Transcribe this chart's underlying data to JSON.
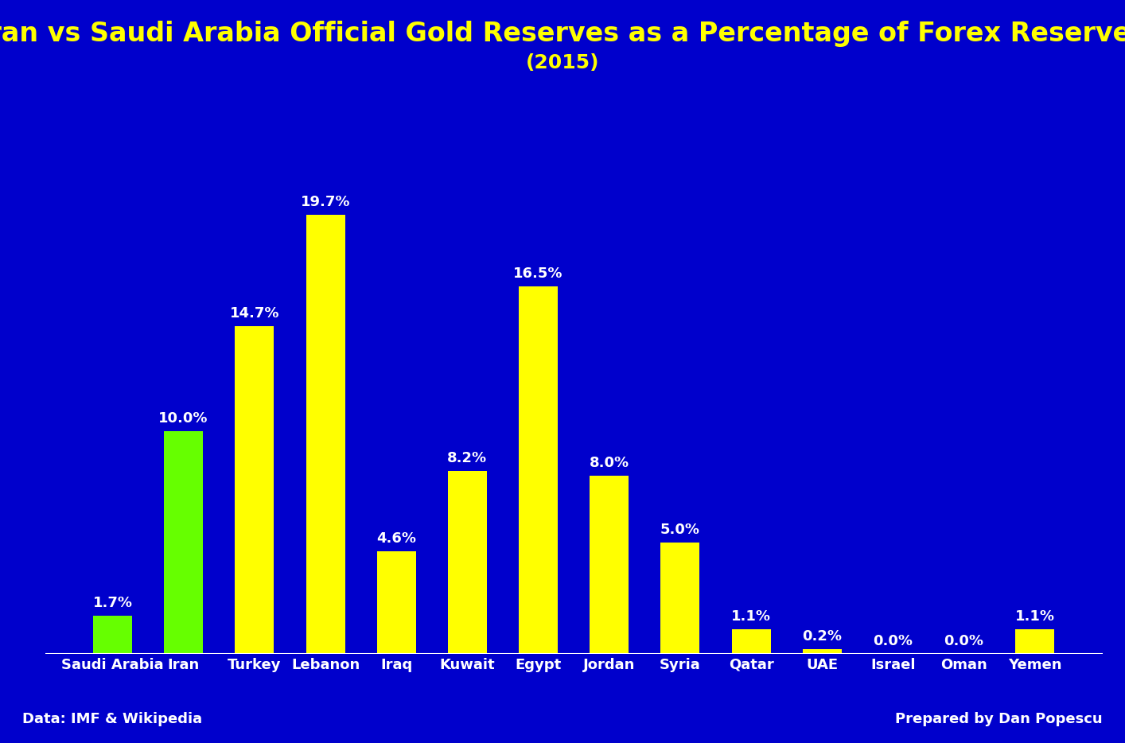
{
  "title": "Iran vs Saudi Arabia Official Gold Reserves as a Percentage of Forex Reserves",
  "subtitle": "(2015)",
  "categories": [
    "Saudi Arabia",
    "Iran",
    "Turkey",
    "Lebanon",
    "Iraq",
    "Kuwait",
    "Egypt",
    "Jordan",
    "Syria",
    "Qatar",
    "UAE",
    "Israel",
    "Oman",
    "Yemen"
  ],
  "values": [
    1.7,
    10.0,
    14.7,
    19.7,
    4.6,
    8.2,
    16.5,
    8.0,
    5.0,
    1.1,
    0.2,
    0.0,
    0.0,
    1.1
  ],
  "bar_colors": [
    "#66ff00",
    "#66ff00",
    "#ffff00",
    "#ffff00",
    "#ffff00",
    "#ffff00",
    "#ffff00",
    "#ffff00",
    "#ffff00",
    "#ffff00",
    "#ffff00",
    "#ffff00",
    "#ffff00",
    "#ffff00"
  ],
  "background_color": "#0000cc",
  "title_color": "#ffff00",
  "subtitle_color": "#ffff00",
  "label_color": "#ffffff",
  "bar_label_color": "#ffffff",
  "footer_left": "Data: IMF & Wikipedia",
  "footer_right": "Prepared by Dan Popescu",
  "footer_color": "#ffffff",
  "title_fontsize": 24,
  "subtitle_fontsize": 18,
  "tick_label_fontsize": 13,
  "bar_label_fontsize": 13,
  "footer_fontsize": 13,
  "ylim": [
    0,
    22
  ]
}
